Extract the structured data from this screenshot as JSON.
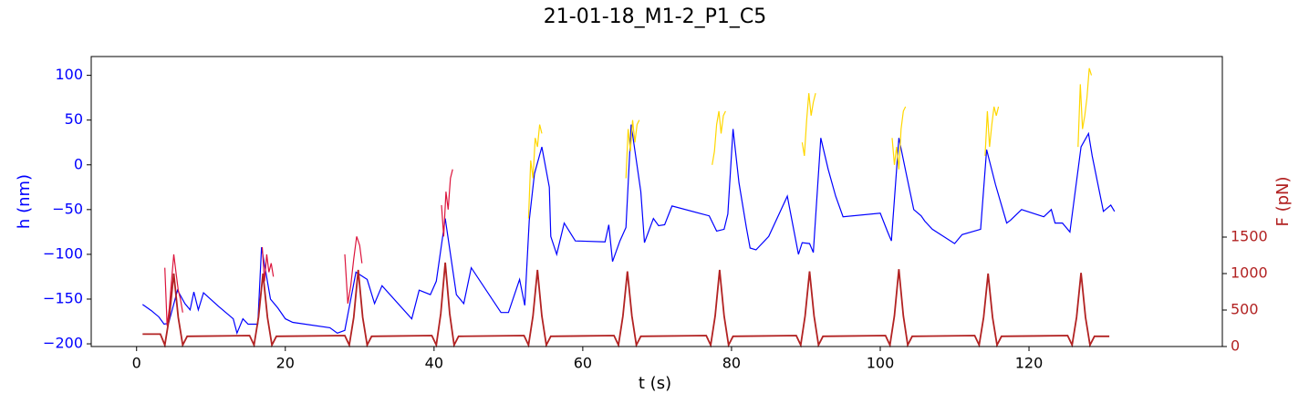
{
  "chart_data": {
    "type": "line",
    "title": "21-01-18_M1-2_P1_C5",
    "x_label": "t (s)",
    "y_label": "h (nm)",
    "y2_label": "F (pN)",
    "y_label_color": "#0000ff",
    "y2_label_color": "#b22222",
    "xlim": [
      -6.1,
      146.0
    ],
    "ylim": [
      -203,
      121
    ],
    "y2lim": [
      0,
      3975
    ],
    "xticks": [
      0,
      20,
      40,
      60,
      80,
      100,
      120
    ],
    "yticks": [
      {
        "value": -200,
        "label": "−200"
      },
      {
        "value": -150,
        "label": "−150"
      },
      {
        "value": -100,
        "label": "−100"
      },
      {
        "value": -50,
        "label": "−50"
      },
      0,
      50,
      100
    ],
    "y2ticks": [
      0,
      500,
      1000,
      1500
    ],
    "series": [
      {
        "color": "#0000ff",
        "axis": "y",
        "x": [
          0.8,
          2,
          3,
          3.7,
          4.3,
          5.5,
          6.5,
          7.2,
          7.7,
          8.3,
          9,
          11,
          13,
          13.5,
          14.3,
          15,
          16.3,
          16.8,
          18,
          19,
          20,
          21,
          26,
          27,
          28,
          29.5,
          31,
          32,
          33,
          37,
          38,
          39.5,
          40.3,
          41.5,
          43,
          44,
          45,
          49,
          50,
          51.5,
          52.2,
          52.8,
          53.5,
          54.5,
          55.5,
          55.7,
          56.5,
          57.5,
          59,
          63,
          63.5,
          64,
          65,
          65.8,
          66.5,
          67.8,
          68.3,
          69.5,
          70.2,
          71,
          72,
          77,
          78,
          79,
          79.5,
          80.2,
          81,
          82,
          82.5,
          83.3,
          85,
          87.5,
          89,
          89.5,
          90.5,
          91,
          92,
          93,
          94,
          95,
          100,
          101,
          101.5,
          102.5,
          103.5,
          104.5,
          105.5,
          106,
          107,
          110,
          111,
          113.5,
          114.3,
          115.5,
          117,
          117.5,
          118,
          119,
          122,
          123,
          123.5,
          124.5,
          125.5,
          127,
          128,
          128.5,
          130,
          131,
          131.5
        ],
        "values": [
          -156,
          -163,
          -170,
          -178,
          -177,
          -140,
          -155,
          -162,
          -142,
          -162,
          -143,
          -158,
          -172,
          -188,
          -172,
          -178,
          -178,
          -92,
          -150,
          -160,
          -172,
          -176,
          -182,
          -188,
          -185,
          -120,
          -128,
          -155,
          -135,
          -172,
          -140,
          -145,
          -130,
          -60,
          -145,
          -155,
          -115,
          -165,
          -165,
          -128,
          -157,
          -62,
          -10,
          20,
          -25,
          -80,
          -100,
          -65,
          -85,
          -86,
          -67,
          -108,
          -85,
          -70,
          45,
          -30,
          -87,
          -60,
          -68,
          -67,
          -46,
          -57,
          -74,
          -72,
          -55,
          40,
          -20,
          -70,
          -93,
          -95,
          -80,
          -35,
          -100,
          -87,
          -88,
          -98,
          30,
          -5,
          -35,
          -58,
          -54,
          -75,
          -85,
          30,
          -10,
          -50,
          -57,
          -63,
          -72,
          -88,
          -78,
          -72,
          17,
          -22,
          -65,
          -62,
          -58,
          -50,
          -58,
          -50,
          -65,
          -65,
          -75,
          20,
          35,
          10,
          -52,
          -45,
          -52
        ]
      },
      {
        "color": "#dc143c",
        "axis": "y",
        "x": [
          3.8,
          4.1,
          4.4,
          4.7,
          5.0,
          5.3,
          5.6,
          5.9,
          6.2,
          null,
          16.9,
          17.2,
          17.5,
          17.8,
          18.1,
          18.4,
          null,
          28.0,
          28.4,
          28.8,
          29.2,
          29.6,
          30.0,
          30.3,
          null,
          41.0,
          41.3,
          41.6,
          41.9,
          42.2,
          42.5
        ],
        "values": [
          -115,
          -180,
          -160,
          -130,
          -100,
          -120,
          -140,
          -150,
          -165,
          null,
          -92,
          -130,
          -100,
          -120,
          -110,
          -125,
          null,
          -100,
          -155,
          -135,
          -105,
          -80,
          -90,
          -110,
          null,
          -45,
          -80,
          -30,
          -50,
          -15,
          -5
        ]
      },
      {
        "color": "#ffd700",
        "axis": "y",
        "x": [
          52.7,
          53.0,
          53.3,
          53.6,
          53.9,
          54.2,
          54.5,
          null,
          65.8,
          66.1,
          66.4,
          66.7,
          67.0,
          67.3,
          67.6,
          null,
          77.4,
          77.7,
          78.0,
          78.3,
          78.6,
          78.9,
          79.2,
          null,
          89.5,
          89.8,
          90.1,
          90.4,
          90.7,
          91.0,
          91.3,
          null,
          101.6,
          101.9,
          102.2,
          102.5,
          102.8,
          103.1,
          103.4,
          null,
          114.1,
          114.4,
          114.7,
          115.0,
          115.3,
          115.6,
          115.9,
          null,
          126.6,
          126.9,
          127.2,
          127.5,
          127.8,
          128.1,
          128.4
        ],
        "values": [
          -60,
          5,
          -15,
          30,
          20,
          45,
          35,
          null,
          -15,
          40,
          15,
          50,
          25,
          45,
          50,
          null,
          0,
          15,
          45,
          60,
          35,
          55,
          60,
          null,
          25,
          10,
          50,
          80,
          55,
          70,
          80,
          null,
          30,
          0,
          20,
          -5,
          40,
          60,
          65,
          null,
          10,
          60,
          20,
          45,
          65,
          55,
          65,
          null,
          20,
          90,
          40,
          55,
          75,
          108,
          100
        ]
      },
      {
        "color": "#b22222",
        "axis": "y2",
        "x": [
          0.8,
          3.2,
          3.8,
          4.4,
          5.0,
          5.6,
          6.2,
          6.8,
          15.2,
          15.8,
          16.4,
          17.0,
          17.6,
          18.2,
          18.8,
          28.0,
          28.6,
          29.2,
          29.8,
          30.4,
          31.0,
          31.6,
          39.7,
          40.3,
          40.9,
          41.5,
          42.1,
          42.7,
          43.3,
          52.1,
          52.7,
          53.3,
          53.9,
          54.5,
          55.1,
          55.7,
          64.2,
          64.8,
          65.4,
          66.0,
          66.6,
          67.2,
          67.8,
          76.6,
          77.2,
          77.8,
          78.4,
          79.0,
          79.6,
          80.2,
          88.7,
          89.3,
          89.9,
          90.5,
          91.1,
          91.7,
          92.3,
          100.7,
          101.3,
          101.9,
          102.5,
          103.1,
          103.7,
          104.3,
          112.7,
          113.3,
          113.9,
          114.5,
          115.1,
          115.7,
          116.3,
          125.2,
          125.8,
          126.4,
          127.0,
          127.6,
          128.2,
          128.8,
          130.8
        ],
        "values": [
          170,
          170,
          20,
          400,
          1000,
          400,
          20,
          140,
          150,
          20,
          400,
          1000,
          400,
          20,
          140,
          150,
          20,
          400,
          1050,
          400,
          20,
          140,
          150,
          20,
          450,
          1150,
          450,
          20,
          140,
          150,
          20,
          420,
          1050,
          420,
          20,
          140,
          150,
          20,
          420,
          1030,
          420,
          20,
          140,
          150,
          20,
          420,
          1050,
          420,
          20,
          140,
          150,
          20,
          420,
          1030,
          420,
          20,
          140,
          150,
          20,
          420,
          1060,
          420,
          20,
          140,
          150,
          20,
          400,
          1000,
          400,
          20,
          140,
          150,
          20,
          400,
          1010,
          400,
          20,
          140,
          140
        ]
      }
    ]
  }
}
